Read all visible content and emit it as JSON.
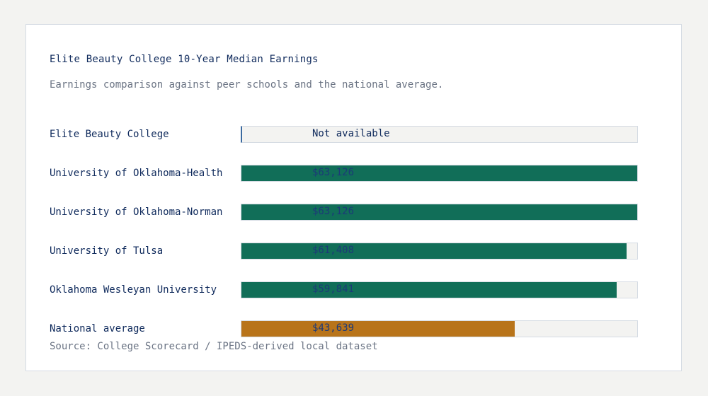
{
  "title": "Elite Beauty College 10-Year Median Earnings",
  "subtitle": "Earnings comparison against peer schools and the national average.",
  "source": "Source: College Scorecard / IPEDS-derived local dataset",
  "colors": {
    "peer": "#116e58",
    "national": "#b8741a",
    "track": "#f3f3f1",
    "text": "#0f2a5c",
    "muted": "#6b7484"
  },
  "rows": [
    {
      "label": "Elite Beauty College",
      "value_text": "Not available",
      "value": null,
      "pct": 0,
      "kind": "na"
    },
    {
      "label": "University of Oklahoma-Health",
      "value_text": "$63,126",
      "value": 63126,
      "pct": 100,
      "kind": "peer"
    },
    {
      "label": "University of Oklahoma-Norman",
      "value_text": "$63,126",
      "value": 63126,
      "pct": 100,
      "kind": "peer"
    },
    {
      "label": "University of Tulsa",
      "value_text": "$61,408",
      "value": 61408,
      "pct": 97.28,
      "kind": "peer"
    },
    {
      "label": "Oklahoma Wesleyan University",
      "value_text": "$59,841",
      "value": 59841,
      "pct": 94.8,
      "kind": "peer"
    },
    {
      "label": "National average",
      "value_text": "$43,639",
      "value": 43639,
      "pct": 69.13,
      "kind": "national"
    }
  ],
  "chart_data": {
    "type": "bar",
    "orientation": "horizontal",
    "title": "Elite Beauty College 10-Year Median Earnings",
    "subtitle": "Earnings comparison against peer schools and the national average.",
    "categories": [
      "Elite Beauty College",
      "University of Oklahoma-Health",
      "University of Oklahoma-Norman",
      "University of Tulsa",
      "Oklahoma Wesleyan University",
      "National average"
    ],
    "values": [
      null,
      63126,
      63126,
      61408,
      59841,
      43639
    ],
    "value_labels": [
      "Not available",
      "$63,126",
      "$63,126",
      "$61,408",
      "$59,841",
      "$43,639"
    ],
    "xlabel": "",
    "ylabel": "",
    "xlim": [
      0,
      63126
    ],
    "grid": false,
    "legend": null,
    "annotations": [
      "Source: College Scorecard / IPEDS-derived local dataset"
    ]
  }
}
